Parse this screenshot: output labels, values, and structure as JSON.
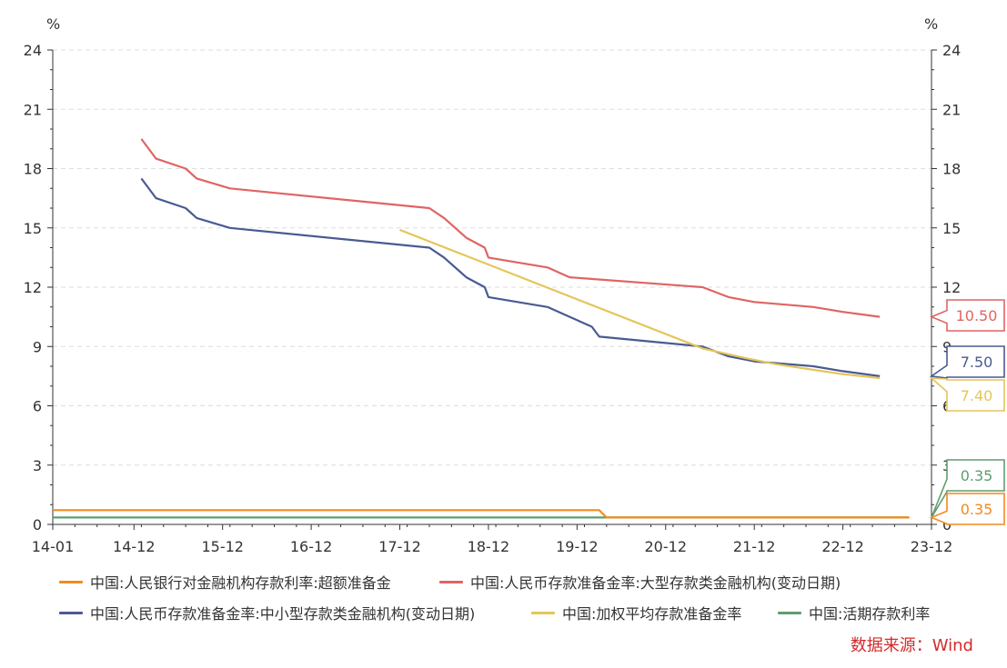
{
  "chart_data": {
    "type": "line",
    "left_unit": "%",
    "right_unit": "%",
    "x_ticks": [
      "14-01",
      "14-12",
      "15-12",
      "16-12",
      "17-12",
      "18-12",
      "19-12",
      "20-12",
      "21-12",
      "22-12",
      "23-12"
    ],
    "x_tick_index": [
      0,
      11,
      23,
      35,
      47,
      59,
      71,
      83,
      95,
      107,
      119
    ],
    "ylim": [
      0,
      24
    ],
    "y_ticks": [
      0,
      3,
      6,
      9,
      12,
      15,
      18,
      21,
      24
    ],
    "grid": true,
    "legend_position": "bottom",
    "source": "数据来源：Wind",
    "series": [
      {
        "name": "中国:人民银行对金融机构存款利率:超额准备金",
        "color": "#f28a1e",
        "end_label": "0.35",
        "points": [
          [
            0,
            0.72
          ],
          [
            74,
            0.72
          ],
          [
            75,
            0.35
          ],
          [
            116,
            0.35
          ]
        ]
      },
      {
        "name": "中国:人民币存款准备金率:大型存款类金融机构(变动日期)",
        "color": "#e06464",
        "end_label": "10.50",
        "points": [
          [
            12,
            19.5
          ],
          [
            14,
            18.5
          ],
          [
            18,
            18.0
          ],
          [
            19.5,
            17.5
          ],
          [
            24,
            17.0
          ],
          [
            51,
            16.0
          ],
          [
            53,
            15.5
          ],
          [
            56,
            14.5
          ],
          [
            58.5,
            14.0
          ],
          [
            59,
            13.5
          ],
          [
            67,
            13.0
          ],
          [
            70,
            12.5
          ],
          [
            88,
            12.0
          ],
          [
            91.5,
            11.5
          ],
          [
            95,
            11.25
          ],
          [
            103,
            11.0
          ],
          [
            107,
            10.75
          ],
          [
            112,
            10.5
          ]
        ]
      },
      {
        "name": "中国:人民币存款准备金率:中小型存款类金融机构(变动日期)",
        "color": "#4a5a92",
        "end_label": "7.50",
        "points": [
          [
            12,
            17.5
          ],
          [
            14,
            16.5
          ],
          [
            18,
            16.0
          ],
          [
            19.5,
            15.5
          ],
          [
            24,
            15.0
          ],
          [
            51,
            14.0
          ],
          [
            53,
            13.5
          ],
          [
            56,
            12.5
          ],
          [
            58.5,
            12.0
          ],
          [
            59,
            11.5
          ],
          [
            67,
            11.0
          ],
          [
            70,
            10.5
          ],
          [
            73,
            10.0
          ],
          [
            74,
            9.5
          ],
          [
            88,
            9.0
          ],
          [
            91.5,
            8.5
          ],
          [
            95,
            8.25
          ],
          [
            103,
            8.0
          ],
          [
            107,
            7.75
          ],
          [
            112,
            7.5
          ]
        ]
      },
      {
        "name": "中国:加权平均存款准备金率",
        "color": "#e5c55a",
        "end_label": "7.40",
        "points": [
          [
            47,
            14.9
          ],
          [
            88,
            8.9
          ],
          [
            94,
            8.4
          ],
          [
            98,
            8.1
          ],
          [
            107,
            7.6
          ],
          [
            112,
            7.4
          ]
        ]
      },
      {
        "name": "中国:活期存款利率",
        "color": "#5e9e6e",
        "end_label": "0.35",
        "points": [
          [
            0,
            0.35
          ],
          [
            116,
            0.35
          ]
        ]
      }
    ]
  }
}
